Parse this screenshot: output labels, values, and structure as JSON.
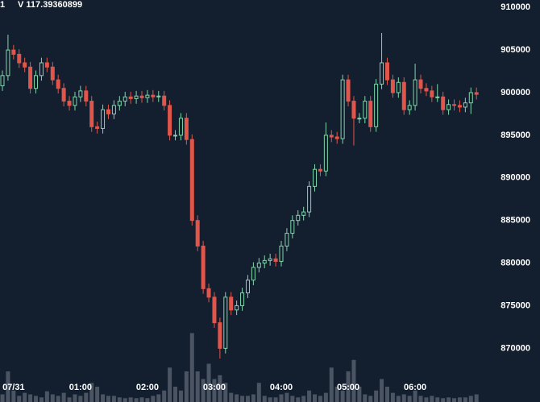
{
  "chart_data": {
    "type": "candlestick",
    "annotations": [
      "1",
      "V 117.39360899"
    ],
    "open": [
      900800,
      902000,
      905000,
      904500,
      903500,
      903000,
      900500,
      902000,
      903500,
      903000,
      901500,
      900500,
      899000,
      898500,
      899500,
      900200,
      899000,
      896000,
      895800,
      898000,
      897500,
      898500,
      899000,
      899500,
      899300,
      899600,
      899400,
      899700,
      899500,
      899600,
      898500,
      895000,
      895000,
      897000,
      894500,
      885000,
      882000,
      877000,
      876000,
      873000,
      870000,
      876000,
      874500,
      875000,
      876500,
      878000,
      879500,
      880000,
      880300,
      880500,
      880200,
      882000,
      883500,
      885000,
      885600,
      886000,
      889000,
      891000,
      890800,
      895000,
      894800,
      894600,
      901500,
      899000,
      897000,
      897000,
      899000,
      896000,
      901000,
      903500,
      901500,
      900000,
      901200,
      898000,
      898500,
      901500,
      900500,
      900200,
      899500,
      899500,
      898000,
      898600,
      898500,
      898300,
      898800,
      900000
    ],
    "high": [
      902600,
      906800,
      905600,
      905100,
      904100,
      903600,
      902600,
      904100,
      904100,
      903600,
      902100,
      901100,
      899600,
      900100,
      900800,
      900800,
      899600,
      896600,
      898600,
      898600,
      899100,
      899600,
      900100,
      900100,
      900200,
      900200,
      900300,
      900300,
      900200,
      900200,
      899100,
      895600,
      897600,
      897600,
      895100,
      885600,
      882600,
      877600,
      876600,
      873600,
      876600,
      876600,
      875600,
      877100,
      878600,
      880100,
      880600,
      880900,
      881100,
      881100,
      882600,
      884100,
      885600,
      886200,
      886600,
      889600,
      891600,
      891600,
      896500,
      895600,
      895400,
      902100,
      902100,
      899600,
      897600,
      899600,
      899600,
      901600,
      907000,
      904100,
      902100,
      901800,
      901800,
      899100,
      903400,
      902100,
      901100,
      900800,
      901000,
      900100,
      899200,
      899200,
      899100,
      899400,
      900600,
      900600
    ],
    "low": [
      900200,
      901400,
      903900,
      902900,
      902400,
      899900,
      899900,
      901400,
      902400,
      900900,
      899900,
      898400,
      897900,
      897900,
      898900,
      898400,
      895400,
      895200,
      895200,
      896900,
      896900,
      897900,
      898400,
      898700,
      898700,
      898800,
      898800,
      898900,
      898900,
      897900,
      894400,
      894400,
      894400,
      893900,
      884400,
      881400,
      876400,
      875400,
      872400,
      868800,
      869400,
      873900,
      873900,
      874400,
      875900,
      877400,
      878900,
      879400,
      879700,
      879600,
      879600,
      881400,
      882900,
      884400,
      885000,
      885400,
      888400,
      890200,
      890200,
      894200,
      894000,
      894000,
      898400,
      893800,
      896400,
      896400,
      895400,
      895400,
      900400,
      900900,
      899400,
      899400,
      897400,
      897400,
      897900,
      899900,
      899600,
      898900,
      898900,
      897400,
      897400,
      897900,
      897700,
      897700,
      897500,
      899200
    ],
    "close": [
      902000,
      905000,
      904500,
      903500,
      903000,
      900500,
      902000,
      903500,
      903000,
      901500,
      900500,
      899000,
      898500,
      899500,
      900200,
      899000,
      896000,
      895800,
      898000,
      897500,
      898500,
      899000,
      899500,
      899300,
      899600,
      899400,
      899700,
      899500,
      899600,
      898500,
      895000,
      895000,
      897000,
      894500,
      885000,
      882000,
      877000,
      876000,
      873000,
      870000,
      876000,
      874500,
      875000,
      876500,
      878000,
      879500,
      880000,
      880300,
      880500,
      880200,
      882000,
      883500,
      885000,
      885600,
      886000,
      889000,
      891000,
      890800,
      895000,
      894800,
      894600,
      901500,
      899000,
      897000,
      897000,
      899000,
      896000,
      901000,
      903500,
      901500,
      900000,
      901200,
      898000,
      898500,
      901500,
      900500,
      900200,
      899500,
      899500,
      898000,
      898600,
      898500,
      898300,
      898800,
      900000,
      899800
    ],
    "volume": [
      10,
      40,
      15,
      8,
      12,
      10,
      8,
      6,
      14,
      10,
      8,
      12,
      6,
      10,
      8,
      12,
      25,
      20,
      10,
      8,
      8,
      6,
      5,
      6,
      5,
      6,
      5,
      8,
      10,
      15,
      45,
      20,
      15,
      40,
      90,
      40,
      30,
      50,
      30,
      35,
      25,
      12,
      10,
      8,
      8,
      10,
      25,
      8,
      6,
      6,
      10,
      12,
      8,
      6,
      8,
      15,
      10,
      8,
      12,
      45,
      20,
      15,
      40,
      55,
      20,
      10,
      8,
      15,
      30,
      20,
      12,
      8,
      10,
      8,
      15,
      8,
      6,
      8,
      6,
      5,
      6,
      5,
      6,
      6,
      8,
      10
    ],
    "vlim": [
      0,
      100
    ],
    "up_color": "#7fd6ab",
    "down_color": "#e0564b",
    "volume_color": "#4b5462",
    "ylim": [
      863700,
      910870
    ],
    "yticks": [
      870000,
      875000,
      880000,
      885000,
      890000,
      895000,
      900000,
      905000,
      910000
    ],
    "xticks": [
      {
        "value": 2,
        "label": "07/31"
      },
      {
        "value": 14,
        "label": "01:00"
      },
      {
        "value": 26,
        "label": "02:00"
      },
      {
        "value": 38,
        "label": "03:00"
      },
      {
        "value": 50,
        "label": "04:00"
      },
      {
        "value": 62,
        "label": "05:00"
      },
      {
        "value": 74,
        "label": "06:00"
      }
    ]
  }
}
